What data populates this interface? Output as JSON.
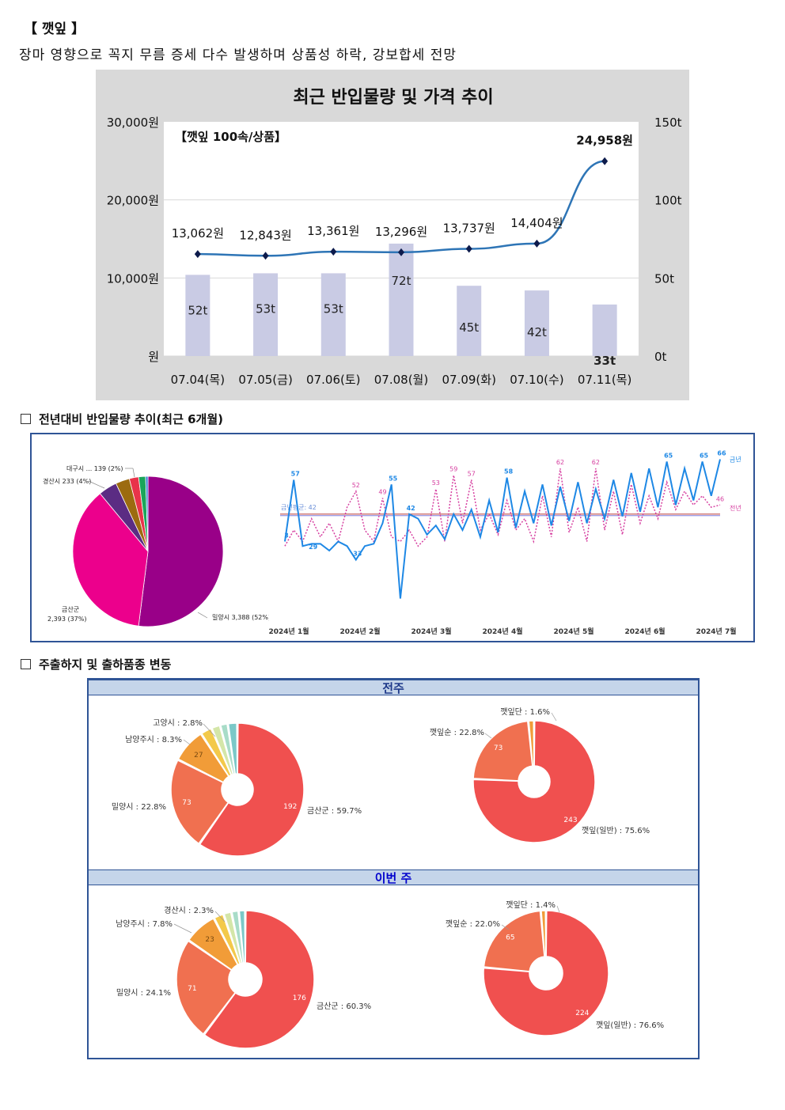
{
  "header": {
    "title": "【 깻잎 】",
    "subtitle": "장마 영향으로 꼭지 무름 증세 다수 발생하며 상품성 하락, 강보합세 전망"
  },
  "chart_data": [
    {
      "type": "bar+line",
      "title": "최근 반입물량 및 가격 추이",
      "inner_label": "【깻잎 100속/상품】",
      "categories": [
        "07.04(목)",
        "07.05(금)",
        "07.06(토)",
        "07.08(월)",
        "07.09(화)",
        "07.10(수)",
        "07.11(목)"
      ],
      "volume_t": [
        52,
        53,
        53,
        72,
        45,
        42,
        33
      ],
      "volume_labels": [
        "52t",
        "53t",
        "53t",
        "72t",
        "45t",
        "42t",
        "33t"
      ],
      "price_won": [
        13062,
        12843,
        13361,
        13296,
        13737,
        14404,
        24958
      ],
      "price_labels": [
        "13,062원",
        "12,843원",
        "13,361원",
        "13,296원",
        "13,737원",
        "14,404원",
        "24,958원"
      ],
      "y_left_ticks": [
        "30,000원",
        "20,000원",
        "10,000원",
        "원"
      ],
      "y_left_range": [
        0,
        30000
      ],
      "y_right_ticks": [
        "150t",
        "100t",
        "50t",
        "0t"
      ],
      "y_right_range": [
        0,
        150
      ],
      "bar_color": "#c9cbe4",
      "line_color": "#2e75b6"
    },
    {
      "type": "pie",
      "section_title": "전년대비 반입물량 추이(최근 6개월)",
      "slices": [
        {
          "label": "밀양시 3,388 (52%)",
          "value": 52,
          "color": "#990088"
        },
        {
          "label": "금산군 2,393 (37%)",
          "value": 37,
          "color": "#ec008c"
        },
        {
          "label": "경산시 233 (4%)",
          "value": 4,
          "color": "#5b2c83"
        },
        {
          "label": "",
          "value": 3,
          "color": "#9c6b10"
        },
        {
          "label": "대구시 ... 139 (2%)",
          "value": 2,
          "color": "#e8334a"
        },
        {
          "label": "",
          "value": 1.5,
          "color": "#1aa55a"
        },
        {
          "label": "",
          "value": 0.5,
          "color": "#2e7dd1"
        }
      ]
    },
    {
      "type": "line",
      "series": [
        {
          "name": "금년",
          "color": "#1e88e5"
        },
        {
          "name": "전년",
          "color": "#d63fa0"
        }
      ],
      "average_label": "금년평균: 42",
      "average_value": 42,
      "x_ticks": [
        "2024년 1월",
        "2024년 2월",
        "2024년 3월",
        "2024년 4월",
        "2024년 5월",
        "2024년 6월",
        "2024년 7월"
      ],
      "this_year_labels": [
        "3",
        "57",
        "29",
        "33",
        "55",
        "42",
        "58",
        "65",
        "65",
        "66"
      ],
      "this_year_points": [
        30,
        57,
        28,
        29,
        29,
        26,
        30,
        28,
        22,
        28,
        29,
        38,
        55,
        5,
        42,
        40,
        33,
        37,
        31,
        42,
        35,
        44,
        32,
        48,
        34,
        58,
        36,
        52,
        38,
        55,
        37,
        54,
        39,
        56,
        38,
        53,
        40,
        57,
        41,
        60,
        43,
        62,
        45,
        65,
        46,
        62,
        48,
        65,
        50,
        66
      ],
      "last_year_labels": [
        "52",
        "49",
        "53",
        "59",
        "57",
        "62",
        "62",
        "46"
      ],
      "last_year_points": [
        28,
        35,
        30,
        40,
        32,
        38,
        30,
        45,
        52,
        35,
        30,
        49,
        32,
        30,
        35,
        28,
        32,
        53,
        30,
        59,
        38,
        57,
        35,
        42,
        33,
        48,
        35,
        40,
        30,
        50,
        32,
        62,
        34,
        45,
        30,
        62,
        35,
        52,
        33,
        55,
        38,
        50,
        40,
        56,
        44,
        52,
        46,
        50,
        45,
        46
      ]
    },
    {
      "type": "pie",
      "section_title": "주출하지 및 출하품종 변동",
      "period": "전주",
      "group": "region",
      "slices": [
        {
          "label": "금산군 : 59.7%",
          "value": 192,
          "display": "192",
          "color": "#f0504f"
        },
        {
          "label": "밀양시 : 22.8%",
          "value": 73,
          "display": "73",
          "color": "#f07050"
        },
        {
          "label": "남양주시 : 8.3%",
          "value": 27,
          "display": "27",
          "color": "#f19c38"
        },
        {
          "label": "고양시 : 2.8%",
          "value": 9,
          "display": "",
          "color": "#f3c94a"
        },
        {
          "label": "",
          "value": 7,
          "display": "",
          "color": "#d4e6a8"
        },
        {
          "label": "",
          "value": 6,
          "display": "",
          "color": "#a8dcc8"
        },
        {
          "label": "",
          "value": 7.5,
          "display": "",
          "color": "#7bc8c8"
        }
      ]
    },
    {
      "type": "pie",
      "period": "전주",
      "group": "variety",
      "slices": [
        {
          "label": "깻잎(일반) : 75.6%",
          "value": 243,
          "display": "243",
          "color": "#f0504f"
        },
        {
          "label": "깻잎순 : 22.8%",
          "value": 73,
          "display": "73",
          "color": "#f07050"
        },
        {
          "label": "깻잎단 : 1.6%",
          "value": 5,
          "display": "",
          "color": "#f19c38"
        }
      ]
    },
    {
      "type": "pie",
      "period": "이번 주",
      "group": "region",
      "slices": [
        {
          "label": "금산군 : 60.3%",
          "value": 176,
          "display": "176",
          "color": "#f0504f"
        },
        {
          "label": "밀양시 : 24.1%",
          "value": 71,
          "display": "71",
          "color": "#f07050"
        },
        {
          "label": "남양주시 : 7.8%",
          "value": 23,
          "display": "23",
          "color": "#f19c38"
        },
        {
          "label": "경산시 : 2.3%",
          "value": 7,
          "display": "",
          "color": "#f3c94a"
        },
        {
          "label": "",
          "value": 5.5,
          "display": "",
          "color": "#d4e6a8"
        },
        {
          "label": "",
          "value": 5,
          "display": "",
          "color": "#a8dcc8"
        },
        {
          "label": "",
          "value": 4.5,
          "display": "",
          "color": "#7bc8c8"
        }
      ]
    },
    {
      "type": "pie",
      "period": "이번 주",
      "group": "variety",
      "slices": [
        {
          "label": "깻잎(일반) : 76.6%",
          "value": 224,
          "display": "224",
          "color": "#f0504f"
        },
        {
          "label": "깻잎순 : 22.0%",
          "value": 65,
          "display": "65",
          "color": "#f07050"
        },
        {
          "label": "깻잎단 : 1.4%",
          "value": 4,
          "display": "",
          "color": "#f19c38"
        }
      ]
    }
  ],
  "sections": {
    "s1": "전년대비 반입물량 추이(최근 6개월)",
    "s2": "주출하지 및 출하품종 변동",
    "band_prev": "전주",
    "band_this": "이번 주"
  }
}
